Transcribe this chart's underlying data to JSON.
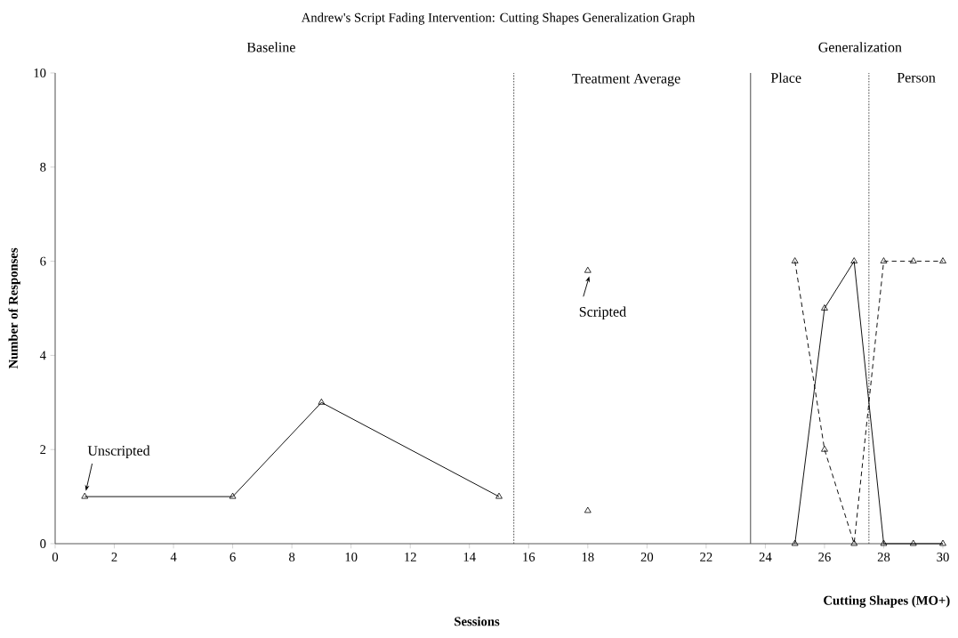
{
  "chart_data": {
    "type": "line",
    "title": "Andrew's Script Fading Intervention: Cutting Shapes Generalization Graph",
    "xlabel": "Sessions",
    "ylabel": "Number of Responses",
    "xlim": [
      0,
      30
    ],
    "ylim": [
      0,
      10
    ],
    "xticks": [
      0,
      2,
      4,
      6,
      8,
      10,
      12,
      14,
      16,
      18,
      20,
      22,
      24,
      26,
      28,
      30
    ],
    "yticks": [
      0,
      2,
      4,
      6,
      8,
      10
    ],
    "grid": false,
    "marker": "triangle",
    "series": [
      {
        "type": "line",
        "color": "#000000",
        "line_style": "solid",
        "x": [
          1,
          6,
          9,
          15
        ],
        "values": [
          1,
          1,
          3,
          1
        ]
      },
      {
        "type": "scatter",
        "color": "#000000",
        "x": [
          18,
          18
        ],
        "values": [
          5.8,
          0.7
        ]
      },
      {
        "type": "line",
        "color": "#000000",
        "line_style": "solid",
        "x": [
          25,
          26,
          27,
          28,
          29,
          30
        ],
        "values": [
          0,
          5,
          6,
          0,
          0,
          0
        ]
      },
      {
        "type": "line",
        "color": "#000000",
        "line_style": "dashed",
        "x": [
          25,
          26,
          27,
          28,
          29,
          30
        ],
        "values": [
          6,
          2,
          0,
          6,
          6,
          6
        ]
      }
    ],
    "ref_lines": [
      {
        "axis": "x",
        "value": 15.5,
        "color": "#555555",
        "line_style": "dotted"
      },
      {
        "axis": "x",
        "value": 23.5,
        "color": "#555555",
        "line_style": "solid"
      },
      {
        "axis": "x",
        "value": 27.5,
        "color": "#555555",
        "line_style": "dotted"
      }
    ],
    "annotations": [
      "Baseline",
      "Treatment Average",
      "Generalization",
      "Place",
      "Person",
      "Cutting Shapes (MO+)",
      {
        "text": "Unscripted",
        "x": 1,
        "y": 1
      },
      {
        "text": "Scripted",
        "x": 18,
        "y": 5.8
      }
    ]
  }
}
